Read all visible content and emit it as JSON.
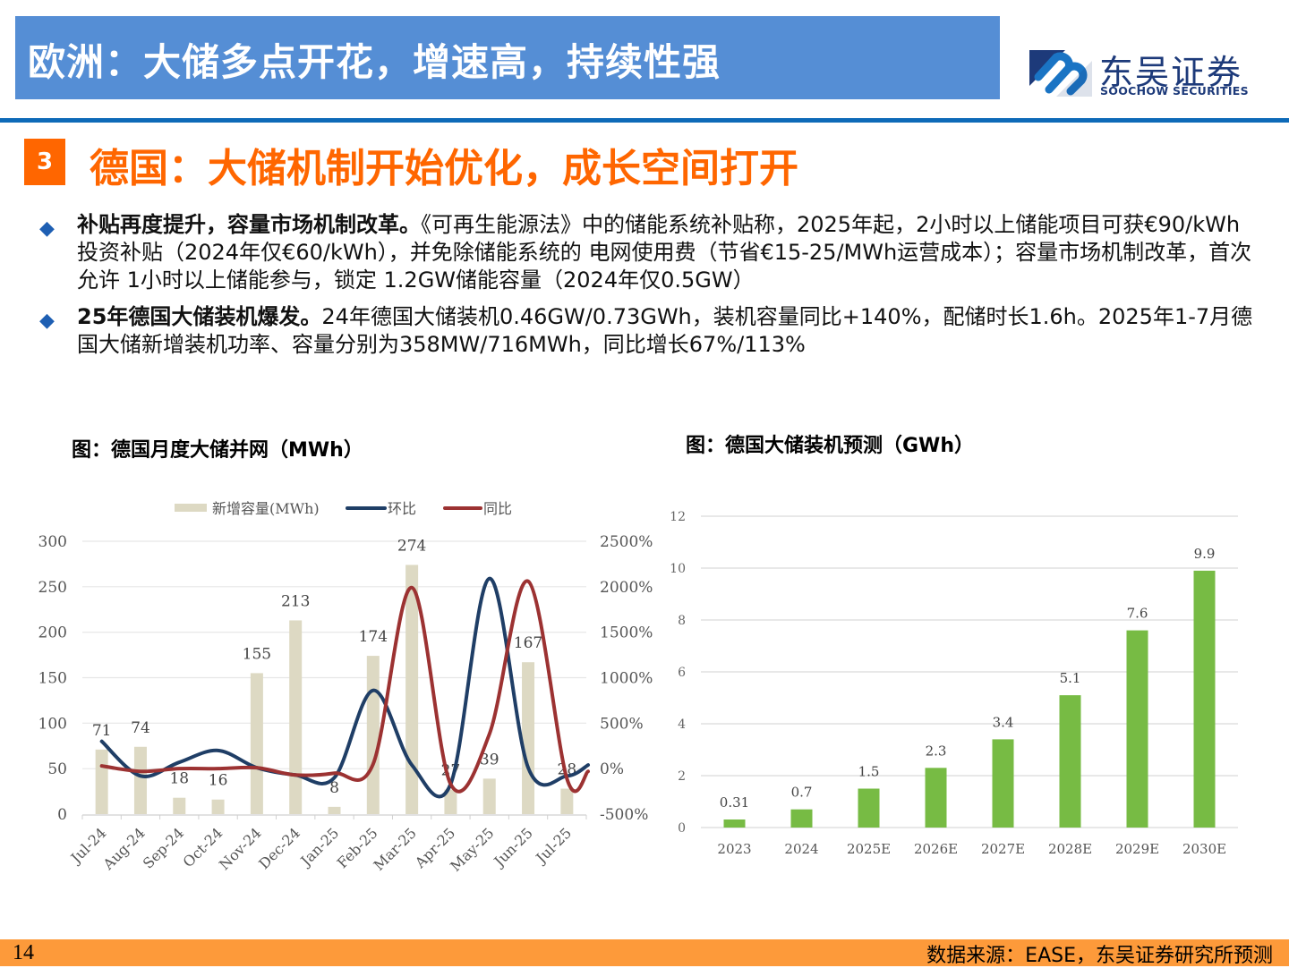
{
  "header": {
    "title": "欧洲：大储多点开花，增速高，持续性强",
    "logo_cn": "东吴证券",
    "logo_en": "SOOCHOW SECURITIES"
  },
  "section": {
    "number": "3",
    "title": "德国：大储机制开始优化，成长空间打开"
  },
  "bullets": [
    {
      "bold": "补贴再度提升，容量市场机制改革。",
      "text": "《可再生能源法》中的储能系统补贴称，2025年起，2小时以上储能项目可获€90/kWh投资补贴（2024年仅€60/kWh），并免除储能系统的 电网使用费（节省€15-25/MWh运营成本）；容量市场机制改革，首次允许 1小时以上储能参与，锁定 1.2GW储能容量（2024年仅0.5GW）"
    },
    {
      "bold": "25年德国大储装机爆发。",
      "text": "24年德国大储装机0.46GW/0.73GWh，装机容量同比+140%，配储时长1.6h。2025年1-7月德国大储新增装机功率、容量分别为358MW/716MWh，同比增长67%/113%"
    }
  ],
  "footer": {
    "page": "14",
    "source": "数据来源：EASE，东吴证券研究所预测"
  },
  "colors": {
    "title_bar": "#558ed5",
    "accent_orange": "#ff6600",
    "rule_blue": "#0e6ab8",
    "footer_orange": "#fd9a3a",
    "bar_beige": "#ddd9c3",
    "line_navy": "#1f3e66",
    "line_red": "#9c3232",
    "bar_green": "#77bb44"
  },
  "chart_data": [
    {
      "type": "bar",
      "title": "图：德国月度大储并网（MWh）",
      "categories": [
        "Jul-24",
        "Aug-24",
        "Sep-24",
        "Oct-24",
        "Nov-24",
        "Dec-24",
        "Jan-25",
        "Feb-25",
        "Mar-25",
        "Apr-25",
        "May-25",
        "Jun-25",
        "Jul-25"
      ],
      "series": [
        {
          "name": "新增容量(MWh)",
          "type": "bar",
          "axis": "left",
          "values": [
            71,
            74,
            18,
            16,
            155,
            213,
            8,
            174,
            274,
            27,
            39,
            167,
            28
          ]
        },
        {
          "name": "环比",
          "type": "line",
          "axis": "right",
          "unit": "%",
          "values": [
            300,
            -80,
            70,
            200,
            10,
            -70,
            -100,
            860,
            40,
            -170,
            2090,
            10,
            -80
          ]
        },
        {
          "name": "同比",
          "type": "line",
          "axis": "right",
          "unit": "%",
          "values": [
            30,
            -30,
            0,
            0,
            10,
            -70,
            -50,
            50,
            1990,
            -170,
            380,
            2060,
            -110
          ]
        }
      ],
      "legend": [
        "新增容量(MWh)",
        "环比",
        "同比"
      ],
      "legend_position": "top",
      "ylim_left": [
        0,
        300
      ],
      "yticks_left": [
        "0",
        "50",
        "100",
        "150",
        "200",
        "250",
        "300"
      ],
      "ylim_right": [
        -500,
        2500
      ],
      "yticks_right": [
        "-500%",
        "0%",
        "500%",
        "1000%",
        "1500%",
        "2000%",
        "2500%"
      ],
      "grid": true,
      "xlabel": "",
      "ylabel": ""
    },
    {
      "type": "bar",
      "title": "图：德国大储装机预测（GWh）",
      "categories": [
        "2023",
        "2024",
        "2025E",
        "2026E",
        "2027E",
        "2028E",
        "2029E",
        "2030E"
      ],
      "values": [
        0.31,
        0.7,
        1.5,
        2.3,
        3.4,
        5.1,
        7.6,
        9.9
      ],
      "labels": [
        "0.31",
        "0.7",
        "1.5",
        "2.3",
        "3.4",
        "5.1",
        "7.6",
        "9.9"
      ],
      "ylim": [
        0,
        12
      ],
      "yticks": [
        "0",
        "2",
        "4",
        "6",
        "8",
        "10",
        "12"
      ],
      "grid": true,
      "xlabel": "",
      "ylabel": ""
    }
  ]
}
